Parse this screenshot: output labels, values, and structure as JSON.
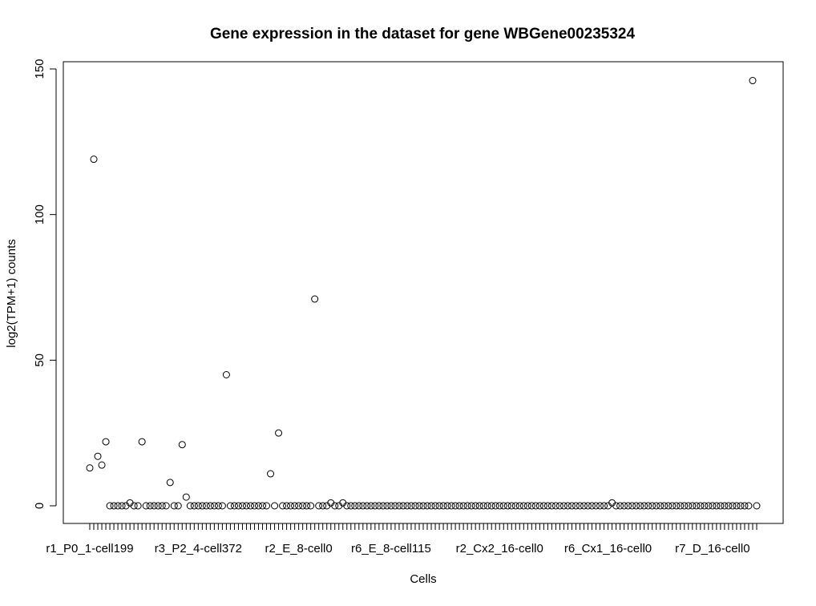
{
  "chart_data": {
    "type": "scatter",
    "title": "Gene expression in the dataset for gene WBGene00235324",
    "xlabel": "Cells",
    "ylabel": "log2(TPM+1) counts",
    "ylim": [
      -5,
      155
    ],
    "y_ticks": [
      0,
      50,
      100,
      150
    ],
    "x_tick_labels": [
      {
        "index": 1,
        "label": "r1_P0_1-cell199"
      },
      {
        "index": 28,
        "label": "r3_P2_4-cell372"
      },
      {
        "index": 53,
        "label": "r2_E_8-cell0"
      },
      {
        "index": 76,
        "label": "r6_E_8-cell115"
      },
      {
        "index": 103,
        "label": "r2_Cx2_16-cell0"
      },
      {
        "index": 130,
        "label": "r6_Cx1_16-cell0"
      },
      {
        "index": 156,
        "label": "r7_D_16-cell0"
      }
    ],
    "n_points": 167,
    "nonzero_points": [
      {
        "index": 1,
        "value": 13
      },
      {
        "index": 2,
        "value": 119
      },
      {
        "index": 3,
        "value": 17
      },
      {
        "index": 4,
        "value": 14
      },
      {
        "index": 5,
        "value": 22
      },
      {
        "index": 11,
        "value": 1
      },
      {
        "index": 14,
        "value": 22
      },
      {
        "index": 21,
        "value": 8
      },
      {
        "index": 24,
        "value": 21
      },
      {
        "index": 25,
        "value": 3
      },
      {
        "index": 35,
        "value": 45
      },
      {
        "index": 46,
        "value": 11
      },
      {
        "index": 48,
        "value": 25
      },
      {
        "index": 57,
        "value": 71
      },
      {
        "index": 61,
        "value": 1
      },
      {
        "index": 64,
        "value": 1
      },
      {
        "index": 131,
        "value": 1
      },
      {
        "index": 166,
        "value": 146
      }
    ],
    "grid": false,
    "legend": "none"
  }
}
